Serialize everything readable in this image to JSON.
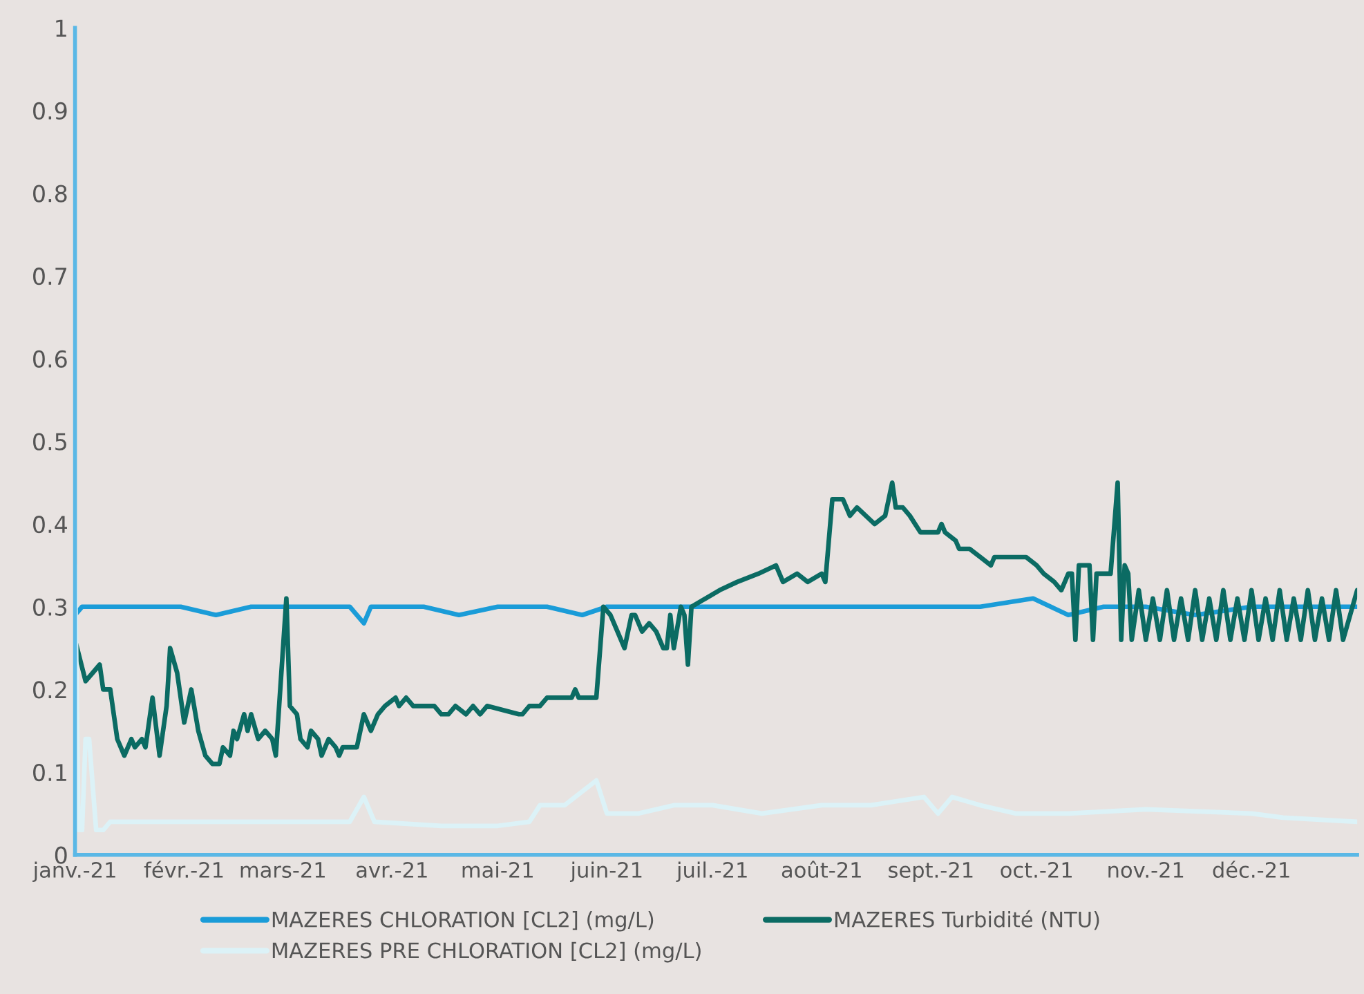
{
  "chart_data": {
    "type": "line",
    "xlim": [
      "2021-01-01",
      "2021-12-31"
    ],
    "xticks": [
      {
        "value": "2021-01-01",
        "label": "janv.-21"
      },
      {
        "value": "2021-02-01",
        "label": "févr.-21"
      },
      {
        "value": "2021-03-01",
        "label": "mars-21"
      },
      {
        "value": "2021-04-01",
        "label": "avr.-21"
      },
      {
        "value": "2021-05-01",
        "label": "mai-21"
      },
      {
        "value": "2021-06-01",
        "label": "juin-21"
      },
      {
        "value": "2021-07-01",
        "label": "juil.-21"
      },
      {
        "value": "2021-08-01",
        "label": "août-21"
      },
      {
        "value": "2021-09-01",
        "label": "sept.-21"
      },
      {
        "value": "2021-10-01",
        "label": "oct.-21"
      },
      {
        "value": "2021-11-01",
        "label": "nov.-21"
      },
      {
        "value": "2021-12-01",
        "label": "déc.-21"
      }
    ],
    "ylim": [
      0,
      1
    ],
    "yticks": [
      0,
      0.1,
      0.2,
      0.3,
      0.4,
      0.5,
      0.6,
      0.7,
      0.8,
      0.9,
      1
    ],
    "legend": "bottom",
    "series": [
      {
        "name": "MAZERES CHLORATION [CL2] (mg/L)",
        "color": "#1a9cd8",
        "x": [
          "2021-01-01",
          "2021-01-03",
          "2021-01-10",
          "2021-01-20",
          "2021-01-31",
          "2021-02-10",
          "2021-02-20",
          "2021-03-01",
          "2021-03-10",
          "2021-03-20",
          "2021-03-24",
          "2021-03-26",
          "2021-04-10",
          "2021-04-20",
          "2021-05-01",
          "2021-05-15",
          "2021-05-25",
          "2021-06-01",
          "2021-06-15",
          "2021-07-01",
          "2021-07-15",
          "2021-08-01",
          "2021-08-15",
          "2021-09-01",
          "2021-09-15",
          "2021-09-30",
          "2021-10-05",
          "2021-10-10",
          "2021-10-20",
          "2021-11-01",
          "2021-11-15",
          "2021-12-01",
          "2021-12-15",
          "2021-12-31"
        ],
        "values": [
          0.29,
          0.3,
          0.3,
          0.3,
          0.3,
          0.29,
          0.3,
          0.3,
          0.3,
          0.3,
          0.28,
          0.3,
          0.3,
          0.29,
          0.3,
          0.3,
          0.29,
          0.3,
          0.3,
          0.3,
          0.3,
          0.3,
          0.3,
          0.3,
          0.3,
          0.31,
          0.3,
          0.29,
          0.3,
          0.3,
          0.29,
          0.3,
          0.3,
          0.3
        ]
      },
      {
        "name": "MAZERES Turbidité (NTU)",
        "color": "#0b6b63",
        "x": [
          "2021-01-01",
          "2021-01-04",
          "2021-01-06",
          "2021-01-08",
          "2021-01-09",
          "2021-01-11",
          "2021-01-13",
          "2021-01-15",
          "2021-01-17",
          "2021-01-18",
          "2021-01-20",
          "2021-01-21",
          "2021-01-23",
          "2021-01-25",
          "2021-01-27",
          "2021-01-28",
          "2021-01-30",
          "2021-02-01",
          "2021-02-03",
          "2021-02-05",
          "2021-02-07",
          "2021-02-09",
          "2021-02-11",
          "2021-02-12",
          "2021-02-14",
          "2021-02-15",
          "2021-02-16",
          "2021-02-18",
          "2021-02-19",
          "2021-02-20",
          "2021-02-22",
          "2021-02-24",
          "2021-02-26",
          "2021-02-27",
          "2021-03-02",
          "2021-03-03",
          "2021-03-05",
          "2021-03-06",
          "2021-03-08",
          "2021-03-09",
          "2021-03-11",
          "2021-03-12",
          "2021-03-14",
          "2021-03-16",
          "2021-03-17",
          "2021-03-18",
          "2021-03-22",
          "2021-03-24",
          "2021-03-26",
          "2021-03-28",
          "2021-03-30",
          "2021-04-02",
          "2021-04-03",
          "2021-04-05",
          "2021-04-07",
          "2021-04-13",
          "2021-04-15",
          "2021-04-17",
          "2021-04-19",
          "2021-04-22",
          "2021-04-24",
          "2021-04-26",
          "2021-04-28",
          "2021-05-07",
          "2021-05-08",
          "2021-05-10",
          "2021-05-13",
          "2021-05-15",
          "2021-05-22",
          "2021-05-23",
          "2021-05-24",
          "2021-05-29",
          "2021-05-31",
          "2021-06-02",
          "2021-06-04",
          "2021-06-06",
          "2021-06-08",
          "2021-06-09",
          "2021-06-11",
          "2021-06-13",
          "2021-06-15",
          "2021-06-17",
          "2021-06-18",
          "2021-06-19",
          "2021-06-20",
          "2021-06-22",
          "2021-06-23",
          "2021-06-24",
          "2021-06-25",
          "2021-06-29",
          "2021-07-03",
          "2021-07-08",
          "2021-07-14",
          "2021-07-19",
          "2021-07-21",
          "2021-07-25",
          "2021-07-28",
          "2021-08-01",
          "2021-08-02",
          "2021-08-04",
          "2021-08-07",
          "2021-08-09",
          "2021-08-11",
          "2021-08-16",
          "2021-08-19",
          "2021-08-21",
          "2021-08-22",
          "2021-08-24",
          "2021-08-26",
          "2021-08-29",
          "2021-09-03",
          "2021-09-04",
          "2021-09-05",
          "2021-09-08",
          "2021-09-09",
          "2021-09-12",
          "2021-09-15",
          "2021-09-18",
          "2021-09-19",
          "2021-09-28",
          "2021-10-01",
          "2021-10-03",
          "2021-10-06",
          "2021-10-08",
          "2021-10-10",
          "2021-10-11",
          "2021-10-12",
          "2021-10-13",
          "2021-10-16",
          "2021-10-17",
          "2021-10-18",
          "2021-10-22",
          "2021-10-24",
          "2021-10-25",
          "2021-10-26",
          "2021-10-27",
          "2021-10-28",
          "2021-10-30",
          "2021-11-01",
          "2021-11-03",
          "2021-11-05",
          "2021-11-07",
          "2021-11-09",
          "2021-11-11",
          "2021-11-13",
          "2021-11-15",
          "2021-11-17",
          "2021-11-19",
          "2021-11-21",
          "2021-11-23",
          "2021-11-25",
          "2021-11-27",
          "2021-11-29",
          "2021-12-01",
          "2021-12-03",
          "2021-12-05",
          "2021-12-07",
          "2021-12-09",
          "2021-12-11",
          "2021-12-13",
          "2021-12-15",
          "2021-12-17",
          "2021-12-19",
          "2021-12-21",
          "2021-12-23",
          "2021-12-25",
          "2021-12-27",
          "2021-12-31"
        ],
        "values": [
          0.26,
          0.21,
          0.22,
          0.23,
          0.2,
          0.2,
          0.14,
          0.12,
          0.14,
          0.13,
          0.14,
          0.13,
          0.19,
          0.12,
          0.18,
          0.25,
          0.22,
          0.16,
          0.2,
          0.15,
          0.12,
          0.11,
          0.11,
          0.13,
          0.12,
          0.15,
          0.14,
          0.17,
          0.15,
          0.17,
          0.14,
          0.15,
          0.14,
          0.12,
          0.31,
          0.18,
          0.17,
          0.14,
          0.13,
          0.15,
          0.14,
          0.12,
          0.14,
          0.13,
          0.12,
          0.13,
          0.13,
          0.17,
          0.15,
          0.17,
          0.18,
          0.19,
          0.18,
          0.19,
          0.18,
          0.18,
          0.17,
          0.17,
          0.18,
          0.17,
          0.18,
          0.17,
          0.18,
          0.17,
          0.17,
          0.18,
          0.18,
          0.19,
          0.19,
          0.2,
          0.19,
          0.19,
          0.3,
          0.29,
          0.27,
          0.25,
          0.29,
          0.29,
          0.27,
          0.28,
          0.27,
          0.25,
          0.25,
          0.29,
          0.25,
          0.3,
          0.29,
          0.23,
          0.3,
          0.31,
          0.32,
          0.33,
          0.34,
          0.35,
          0.33,
          0.34,
          0.33,
          0.34,
          0.33,
          0.43,
          0.43,
          0.41,
          0.42,
          0.4,
          0.41,
          0.45,
          0.42,
          0.42,
          0.41,
          0.39,
          0.39,
          0.4,
          0.39,
          0.38,
          0.37,
          0.37,
          0.36,
          0.35,
          0.36,
          0.36,
          0.35,
          0.34,
          0.33,
          0.32,
          0.34,
          0.34,
          0.26,
          0.35,
          0.35,
          0.26,
          0.34,
          0.34,
          0.45,
          0.26,
          0.35,
          0.34,
          0.26,
          0.32,
          0.26,
          0.31,
          0.26,
          0.32,
          0.26,
          0.31,
          0.26,
          0.32,
          0.26,
          0.31,
          0.26,
          0.32,
          0.26,
          0.31,
          0.26,
          0.32,
          0.26,
          0.31,
          0.26,
          0.32,
          0.26,
          0.31,
          0.26,
          0.32,
          0.26,
          0.31,
          0.26,
          0.32,
          0.26,
          0.32
        ]
      },
      {
        "name": "MAZERES PRE CHLORATION [CL2] (mg/L)",
        "color": "#dcf2f7",
        "x": [
          "2021-01-01",
          "2021-01-02",
          "2021-01-03",
          "2021-01-04",
          "2021-01-05",
          "2021-01-07",
          "2021-01-09",
          "2021-01-11",
          "2021-02-01",
          "2021-03-01",
          "2021-03-20",
          "2021-03-24",
          "2021-03-27",
          "2021-04-15",
          "2021-05-01",
          "2021-05-10",
          "2021-05-13",
          "2021-05-20",
          "2021-05-29",
          "2021-06-01",
          "2021-06-10",
          "2021-06-20",
          "2021-07-01",
          "2021-07-15",
          "2021-08-01",
          "2021-08-15",
          "2021-08-30",
          "2021-09-03",
          "2021-09-07",
          "2021-09-15",
          "2021-09-25",
          "2021-10-10",
          "2021-11-01",
          "2021-12-01",
          "2021-12-10",
          "2021-12-31"
        ],
        "values": [
          0.35,
          0.03,
          0.03,
          0.14,
          0.14,
          0.03,
          0.03,
          0.04,
          0.04,
          0.04,
          0.04,
          0.07,
          0.04,
          0.035,
          0.035,
          0.04,
          0.06,
          0.06,
          0.09,
          0.05,
          0.05,
          0.06,
          0.06,
          0.05,
          0.06,
          0.06,
          0.07,
          0.05,
          0.07,
          0.06,
          0.05,
          0.05,
          0.055,
          0.05,
          0.045,
          0.04
        ]
      }
    ]
  }
}
